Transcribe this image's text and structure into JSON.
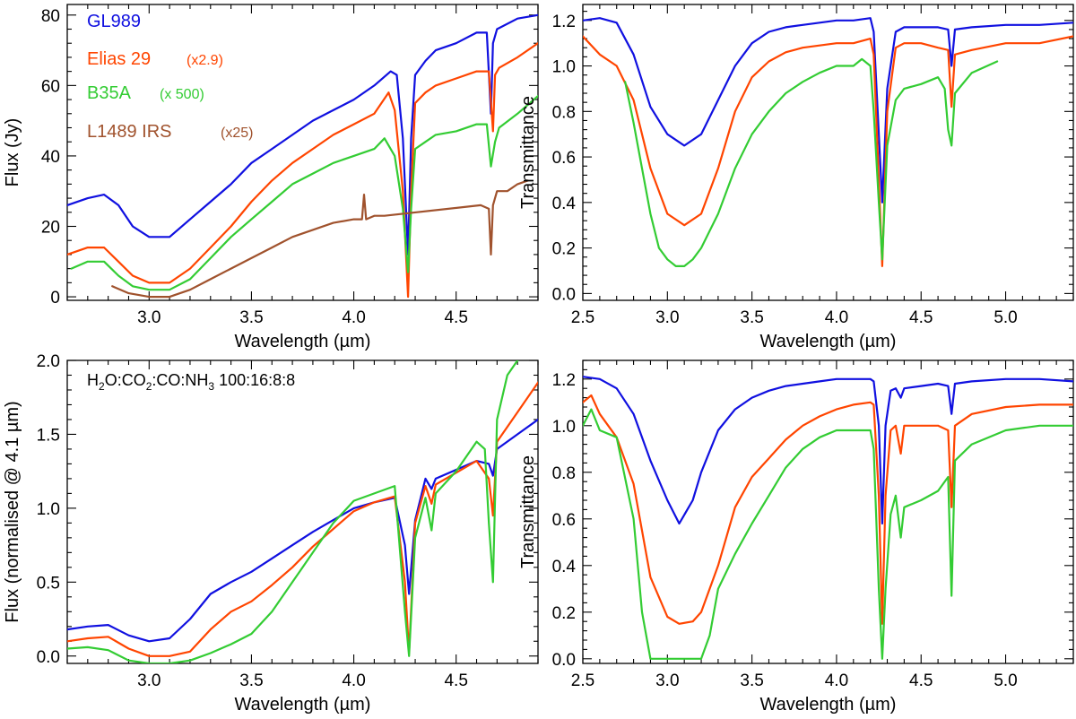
{
  "colors": {
    "GL989": "#1010e0",
    "Elias 29": "#ff4500",
    "B35A": "#33cc33",
    "L1489 IRS": "#a0522d"
  },
  "chart_data": [
    {
      "id": "p1",
      "type": "line",
      "xlabel": "Wavelength (µm)",
      "ylabel": "Flux (Jy)",
      "xlim": [
        2.6,
        4.9
      ],
      "ylim": [
        -1,
        83
      ],
      "xticks": [
        3.0,
        3.5,
        4.0,
        4.5
      ],
      "yticks": [
        0,
        20,
        40,
        60,
        80
      ],
      "xtick_labels": [
        "3.0",
        "3.5",
        "4.0",
        "4.5"
      ],
      "ytick_labels": [
        "0",
        "20",
        "40",
        "60",
        "80"
      ],
      "legend": [
        {
          "name": "GL989",
          "scale": ""
        },
        {
          "name": "Elias 29",
          "scale": "(x2.9)"
        },
        {
          "name": "B35A",
          "scale": "(x 500)"
        },
        {
          "name": "L1489 IRS",
          "scale": "(x25)"
        }
      ],
      "series": [
        {
          "name": "GL989",
          "x": [
            2.6,
            2.7,
            2.78,
            2.85,
            2.92,
            3.0,
            3.1,
            3.2,
            3.3,
            3.4,
            3.5,
            3.6,
            3.7,
            3.8,
            3.9,
            4.0,
            4.1,
            4.18,
            4.21,
            4.24,
            4.265,
            4.28,
            4.3,
            4.35,
            4.4,
            4.5,
            4.6,
            4.65,
            4.67,
            4.68,
            4.7,
            4.8,
            4.9
          ],
          "y": [
            26,
            28,
            29,
            26,
            20,
            17,
            17,
            22,
            27,
            32,
            38,
            42,
            46,
            50,
            53,
            56,
            60,
            64,
            63,
            45,
            12,
            45,
            63,
            67,
            70,
            72,
            75,
            75,
            52,
            72,
            76,
            79,
            80
          ]
        },
        {
          "name": "Elias 29",
          "x": [
            2.6,
            2.7,
            2.78,
            2.85,
            2.92,
            3.0,
            3.1,
            3.2,
            3.3,
            3.4,
            3.5,
            3.6,
            3.7,
            3.8,
            3.9,
            4.0,
            4.1,
            4.17,
            4.2,
            4.24,
            4.265,
            4.28,
            4.3,
            4.35,
            4.4,
            4.5,
            4.6,
            4.66,
            4.68,
            4.69,
            4.71,
            4.8,
            4.9
          ],
          "y": [
            12,
            14,
            14,
            10,
            6,
            4,
            4,
            8,
            14,
            20,
            27,
            33,
            38,
            42,
            46,
            49,
            52,
            58,
            53,
            30,
            0,
            30,
            55,
            58,
            60,
            62,
            64,
            64,
            47,
            63,
            65,
            68,
            72
          ]
        },
        {
          "name": "B35A",
          "x": [
            2.62,
            2.7,
            2.78,
            2.85,
            2.92,
            3.0,
            3.1,
            3.2,
            3.3,
            3.4,
            3.5,
            3.6,
            3.7,
            3.8,
            3.9,
            4.0,
            4.1,
            4.15,
            4.2,
            4.24,
            4.265,
            4.28,
            4.3,
            4.35,
            4.4,
            4.5,
            4.6,
            4.65,
            4.67,
            4.69,
            4.71,
            4.8,
            4.9
          ],
          "y": [
            8,
            10,
            10,
            6,
            3,
            2,
            2,
            5,
            11,
            17,
            22,
            27,
            32,
            35,
            38,
            40,
            42,
            45,
            40,
            25,
            7,
            25,
            42,
            44,
            46,
            47,
            49,
            49,
            37,
            44,
            48,
            52,
            57
          ]
        },
        {
          "name": "L1489 IRS",
          "x": [
            2.82,
            2.9,
            3.0,
            3.1,
            3.2,
            3.3,
            3.4,
            3.5,
            3.6,
            3.7,
            3.8,
            3.9,
            4.0,
            4.04,
            4.05,
            4.06,
            4.1,
            4.15,
            4.62,
            4.66,
            4.67,
            4.68,
            4.7,
            4.75,
            4.8,
            4.85
          ],
          "y": [
            3,
            1,
            0,
            0,
            2,
            5,
            8,
            11,
            14,
            17,
            19,
            21,
            22,
            22,
            29,
            22,
            23,
            23,
            26,
            25,
            12,
            26,
            30,
            30,
            32,
            33
          ]
        }
      ]
    },
    {
      "id": "p2",
      "type": "line",
      "xlabel": "Wavelength (µm)",
      "ylabel": "Transmittance",
      "xlim": [
        2.5,
        5.4
      ],
      "ylim": [
        -0.03,
        1.27
      ],
      "xticks": [
        2.5,
        3.0,
        3.5,
        4.0,
        4.5,
        5.0
      ],
      "yticks": [
        0.0,
        0.2,
        0.4,
        0.6,
        0.8,
        1.0,
        1.2
      ],
      "xtick_labels": [
        "2.5",
        "3.0",
        "3.5",
        "4.0",
        "4.5",
        "5.0"
      ],
      "ytick_labels": [
        "0.0",
        "0.2",
        "0.4",
        "0.6",
        "0.8",
        "1.0",
        "1.2"
      ],
      "series": [
        {
          "name": "GL989",
          "x": [
            2.5,
            2.6,
            2.7,
            2.8,
            2.9,
            3.0,
            3.1,
            3.2,
            3.3,
            3.4,
            3.5,
            3.6,
            3.7,
            3.8,
            3.9,
            4.0,
            4.1,
            4.2,
            4.22,
            4.25,
            4.27,
            4.3,
            4.35,
            4.4,
            4.5,
            4.6,
            4.66,
            4.68,
            4.7,
            4.8,
            5.0,
            5.2,
            5.4
          ],
          "y": [
            1.2,
            1.21,
            1.19,
            1.05,
            0.82,
            0.7,
            0.65,
            0.7,
            0.85,
            1.0,
            1.1,
            1.15,
            1.17,
            1.18,
            1.19,
            1.2,
            1.2,
            1.21,
            1.15,
            0.7,
            0.4,
            0.9,
            1.15,
            1.17,
            1.17,
            1.17,
            1.16,
            1.0,
            1.16,
            1.17,
            1.18,
            1.18,
            1.19
          ]
        },
        {
          "name": "Elias 29",
          "x": [
            2.5,
            2.6,
            2.7,
            2.8,
            2.9,
            3.0,
            3.1,
            3.2,
            3.3,
            3.4,
            3.5,
            3.6,
            3.7,
            3.8,
            3.9,
            4.0,
            4.1,
            4.2,
            4.22,
            4.25,
            4.27,
            4.3,
            4.35,
            4.4,
            4.5,
            4.6,
            4.66,
            4.68,
            4.7,
            4.8,
            5.0,
            5.2,
            5.4
          ],
          "y": [
            1.13,
            1.05,
            1.0,
            0.85,
            0.55,
            0.35,
            0.3,
            0.35,
            0.55,
            0.8,
            0.95,
            1.02,
            1.06,
            1.08,
            1.09,
            1.1,
            1.1,
            1.12,
            1.05,
            0.5,
            0.12,
            0.8,
            1.08,
            1.1,
            1.1,
            1.08,
            1.07,
            0.82,
            1.05,
            1.07,
            1.1,
            1.1,
            1.13
          ]
        },
        {
          "name": "B35A",
          "x": [
            2.75,
            2.8,
            2.85,
            2.9,
            2.95,
            3.0,
            3.05,
            3.1,
            3.15,
            3.2,
            3.3,
            3.4,
            3.5,
            3.6,
            3.7,
            3.8,
            3.9,
            4.0,
            4.1,
            4.15,
            4.2,
            4.22,
            4.25,
            4.27,
            4.3,
            4.35,
            4.4,
            4.5,
            4.6,
            4.64,
            4.66,
            4.68,
            4.7,
            4.8,
            4.95
          ],
          "y": [
            0.93,
            0.75,
            0.55,
            0.35,
            0.2,
            0.15,
            0.12,
            0.12,
            0.15,
            0.2,
            0.35,
            0.55,
            0.7,
            0.8,
            0.88,
            0.93,
            0.97,
            1.0,
            1.0,
            1.03,
            1.0,
            0.8,
            0.4,
            0.15,
            0.65,
            0.85,
            0.9,
            0.92,
            0.95,
            0.9,
            0.72,
            0.65,
            0.88,
            0.97,
            1.02
          ]
        }
      ]
    },
    {
      "id": "p3",
      "type": "line",
      "xlabel": "Wavelength (µm)",
      "ylabel": "Flux (normalised @ 4.1 µm)",
      "xlim": [
        2.6,
        4.9
      ],
      "ylim": [
        -0.05,
        2.0
      ],
      "xticks": [
        3.0,
        3.5,
        4.0,
        4.5
      ],
      "yticks": [
        0.0,
        0.5,
        1.0,
        1.5,
        2.0
      ],
      "xtick_labels": [
        "3.0",
        "3.5",
        "4.0",
        "4.5"
      ],
      "ytick_labels": [
        "0.0",
        "0.5",
        "1.0",
        "1.5",
        "2.0"
      ],
      "annotation": {
        "text": "H2O:CO2:CO:NH3 100:16:8:8",
        "mixture": "100:16:8:8"
      },
      "series": [
        {
          "name": "GL989",
          "x": [
            2.6,
            2.7,
            2.8,
            2.9,
            3.0,
            3.1,
            3.2,
            3.3,
            3.4,
            3.5,
            3.6,
            3.7,
            3.8,
            3.9,
            4.0,
            4.1,
            4.2,
            4.25,
            4.27,
            4.3,
            4.35,
            4.38,
            4.4,
            4.5,
            4.6,
            4.66,
            4.68,
            4.7,
            4.8,
            4.9
          ],
          "y": [
            0.18,
            0.2,
            0.21,
            0.14,
            0.1,
            0.12,
            0.25,
            0.42,
            0.5,
            0.57,
            0.66,
            0.75,
            0.84,
            0.92,
            1.0,
            1.04,
            1.07,
            0.75,
            0.42,
            0.92,
            1.2,
            1.13,
            1.2,
            1.26,
            1.32,
            1.3,
            1.22,
            1.4,
            1.5,
            1.6
          ]
        },
        {
          "name": "Elias 29",
          "x": [
            2.6,
            2.7,
            2.8,
            2.9,
            3.0,
            3.1,
            3.2,
            3.3,
            3.4,
            3.5,
            3.6,
            3.7,
            3.8,
            3.9,
            4.0,
            4.1,
            4.2,
            4.25,
            4.27,
            4.3,
            4.35,
            4.38,
            4.4,
            4.5,
            4.6,
            4.66,
            4.68,
            4.7,
            4.8,
            4.9
          ],
          "y": [
            0.1,
            0.12,
            0.13,
            0.05,
            0.0,
            0.0,
            0.03,
            0.18,
            0.3,
            0.37,
            0.48,
            0.6,
            0.74,
            0.86,
            0.98,
            1.04,
            1.08,
            0.5,
            0.02,
            0.9,
            1.15,
            1.03,
            1.16,
            1.24,
            1.32,
            1.2,
            0.95,
            1.45,
            1.65,
            1.85
          ]
        },
        {
          "name": "B35A",
          "x": [
            2.6,
            2.7,
            2.8,
            2.9,
            3.0,
            3.1,
            3.2,
            3.3,
            3.4,
            3.5,
            3.6,
            3.7,
            3.8,
            3.9,
            4.0,
            4.1,
            4.2,
            4.25,
            4.27,
            4.3,
            4.35,
            4.38,
            4.4,
            4.5,
            4.6,
            4.64,
            4.66,
            4.68,
            4.7,
            4.75,
            4.8
          ],
          "y": [
            0.05,
            0.06,
            0.04,
            -0.03,
            -0.05,
            -0.05,
            -0.03,
            0.02,
            0.08,
            0.15,
            0.3,
            0.5,
            0.7,
            0.9,
            1.05,
            1.1,
            1.15,
            0.3,
            0.0,
            0.8,
            1.07,
            0.85,
            1.1,
            1.25,
            1.45,
            1.4,
            0.9,
            0.5,
            1.6,
            1.9,
            2.0
          ]
        }
      ]
    },
    {
      "id": "p4",
      "type": "line",
      "xlabel": "Wavelength (µm)",
      "ylabel": "Transmittance",
      "xlim": [
        2.5,
        5.4
      ],
      "ylim": [
        -0.02,
        1.28
      ],
      "xticks": [
        2.5,
        3.0,
        3.5,
        4.0,
        4.5,
        5.0
      ],
      "yticks": [
        0.0,
        0.2,
        0.4,
        0.6,
        0.8,
        1.0,
        1.2
      ],
      "xtick_labels": [
        "2.5",
        "3.0",
        "3.5",
        "4.0",
        "4.5",
        "5.0"
      ],
      "ytick_labels": [
        "0.0",
        "0.2",
        "0.4",
        "0.6",
        "0.8",
        "1.0",
        "1.2"
      ],
      "series": [
        {
          "name": "GL989",
          "x": [
            2.5,
            2.6,
            2.7,
            2.8,
            2.9,
            3.0,
            3.07,
            3.15,
            3.2,
            3.3,
            3.4,
            3.5,
            3.6,
            3.7,
            3.8,
            3.9,
            4.0,
            4.1,
            4.2,
            4.22,
            4.25,
            4.27,
            4.29,
            4.32,
            4.35,
            4.38,
            4.4,
            4.5,
            4.6,
            4.66,
            4.68,
            4.7,
            4.8,
            5.0,
            5.2,
            5.4
          ],
          "y": [
            1.21,
            1.2,
            1.16,
            1.05,
            0.85,
            0.68,
            0.58,
            0.68,
            0.8,
            0.98,
            1.07,
            1.12,
            1.15,
            1.17,
            1.18,
            1.19,
            1.2,
            1.2,
            1.2,
            1.19,
            1.0,
            0.58,
            1.0,
            1.15,
            1.16,
            1.12,
            1.16,
            1.17,
            1.18,
            1.17,
            1.05,
            1.18,
            1.19,
            1.2,
            1.2,
            1.19
          ]
        },
        {
          "name": "Elias 29",
          "x": [
            2.5,
            2.55,
            2.6,
            2.7,
            2.8,
            2.9,
            3.0,
            3.07,
            3.15,
            3.2,
            3.3,
            3.4,
            3.5,
            3.6,
            3.7,
            3.8,
            3.9,
            4.0,
            4.1,
            4.2,
            4.22,
            4.25,
            4.27,
            4.29,
            4.32,
            4.35,
            4.38,
            4.4,
            4.5,
            4.6,
            4.66,
            4.68,
            4.7,
            4.8,
            5.0,
            5.2,
            5.4
          ],
          "y": [
            1.1,
            1.13,
            1.05,
            0.95,
            0.75,
            0.35,
            0.18,
            0.15,
            0.16,
            0.2,
            0.4,
            0.65,
            0.78,
            0.86,
            0.94,
            1.0,
            1.04,
            1.07,
            1.09,
            1.1,
            1.09,
            0.7,
            0.15,
            0.7,
            0.98,
            1.0,
            0.88,
            1.0,
            1.0,
            1.0,
            0.98,
            0.65,
            1.0,
            1.05,
            1.08,
            1.09,
            1.09
          ]
        },
        {
          "name": "B35A",
          "x": [
            2.5,
            2.55,
            2.6,
            2.7,
            2.8,
            2.85,
            2.9,
            3.0,
            3.1,
            3.2,
            3.25,
            3.3,
            3.4,
            3.5,
            3.6,
            3.7,
            3.8,
            3.9,
            4.0,
            4.1,
            4.2,
            4.22,
            4.25,
            4.27,
            4.29,
            4.32,
            4.35,
            4.38,
            4.4,
            4.5,
            4.6,
            4.66,
            4.68,
            4.7,
            4.8,
            5.0,
            5.2,
            5.4
          ],
          "y": [
            1.0,
            1.07,
            0.98,
            0.95,
            0.6,
            0.2,
            0.0,
            0.0,
            0.0,
            0.0,
            0.1,
            0.3,
            0.45,
            0.58,
            0.7,
            0.82,
            0.9,
            0.95,
            0.98,
            0.98,
            0.98,
            0.9,
            0.3,
            0.0,
            0.3,
            0.62,
            0.7,
            0.52,
            0.65,
            0.68,
            0.72,
            0.78,
            0.27,
            0.85,
            0.92,
            0.98,
            1.0,
            1.0
          ]
        }
      ]
    }
  ]
}
